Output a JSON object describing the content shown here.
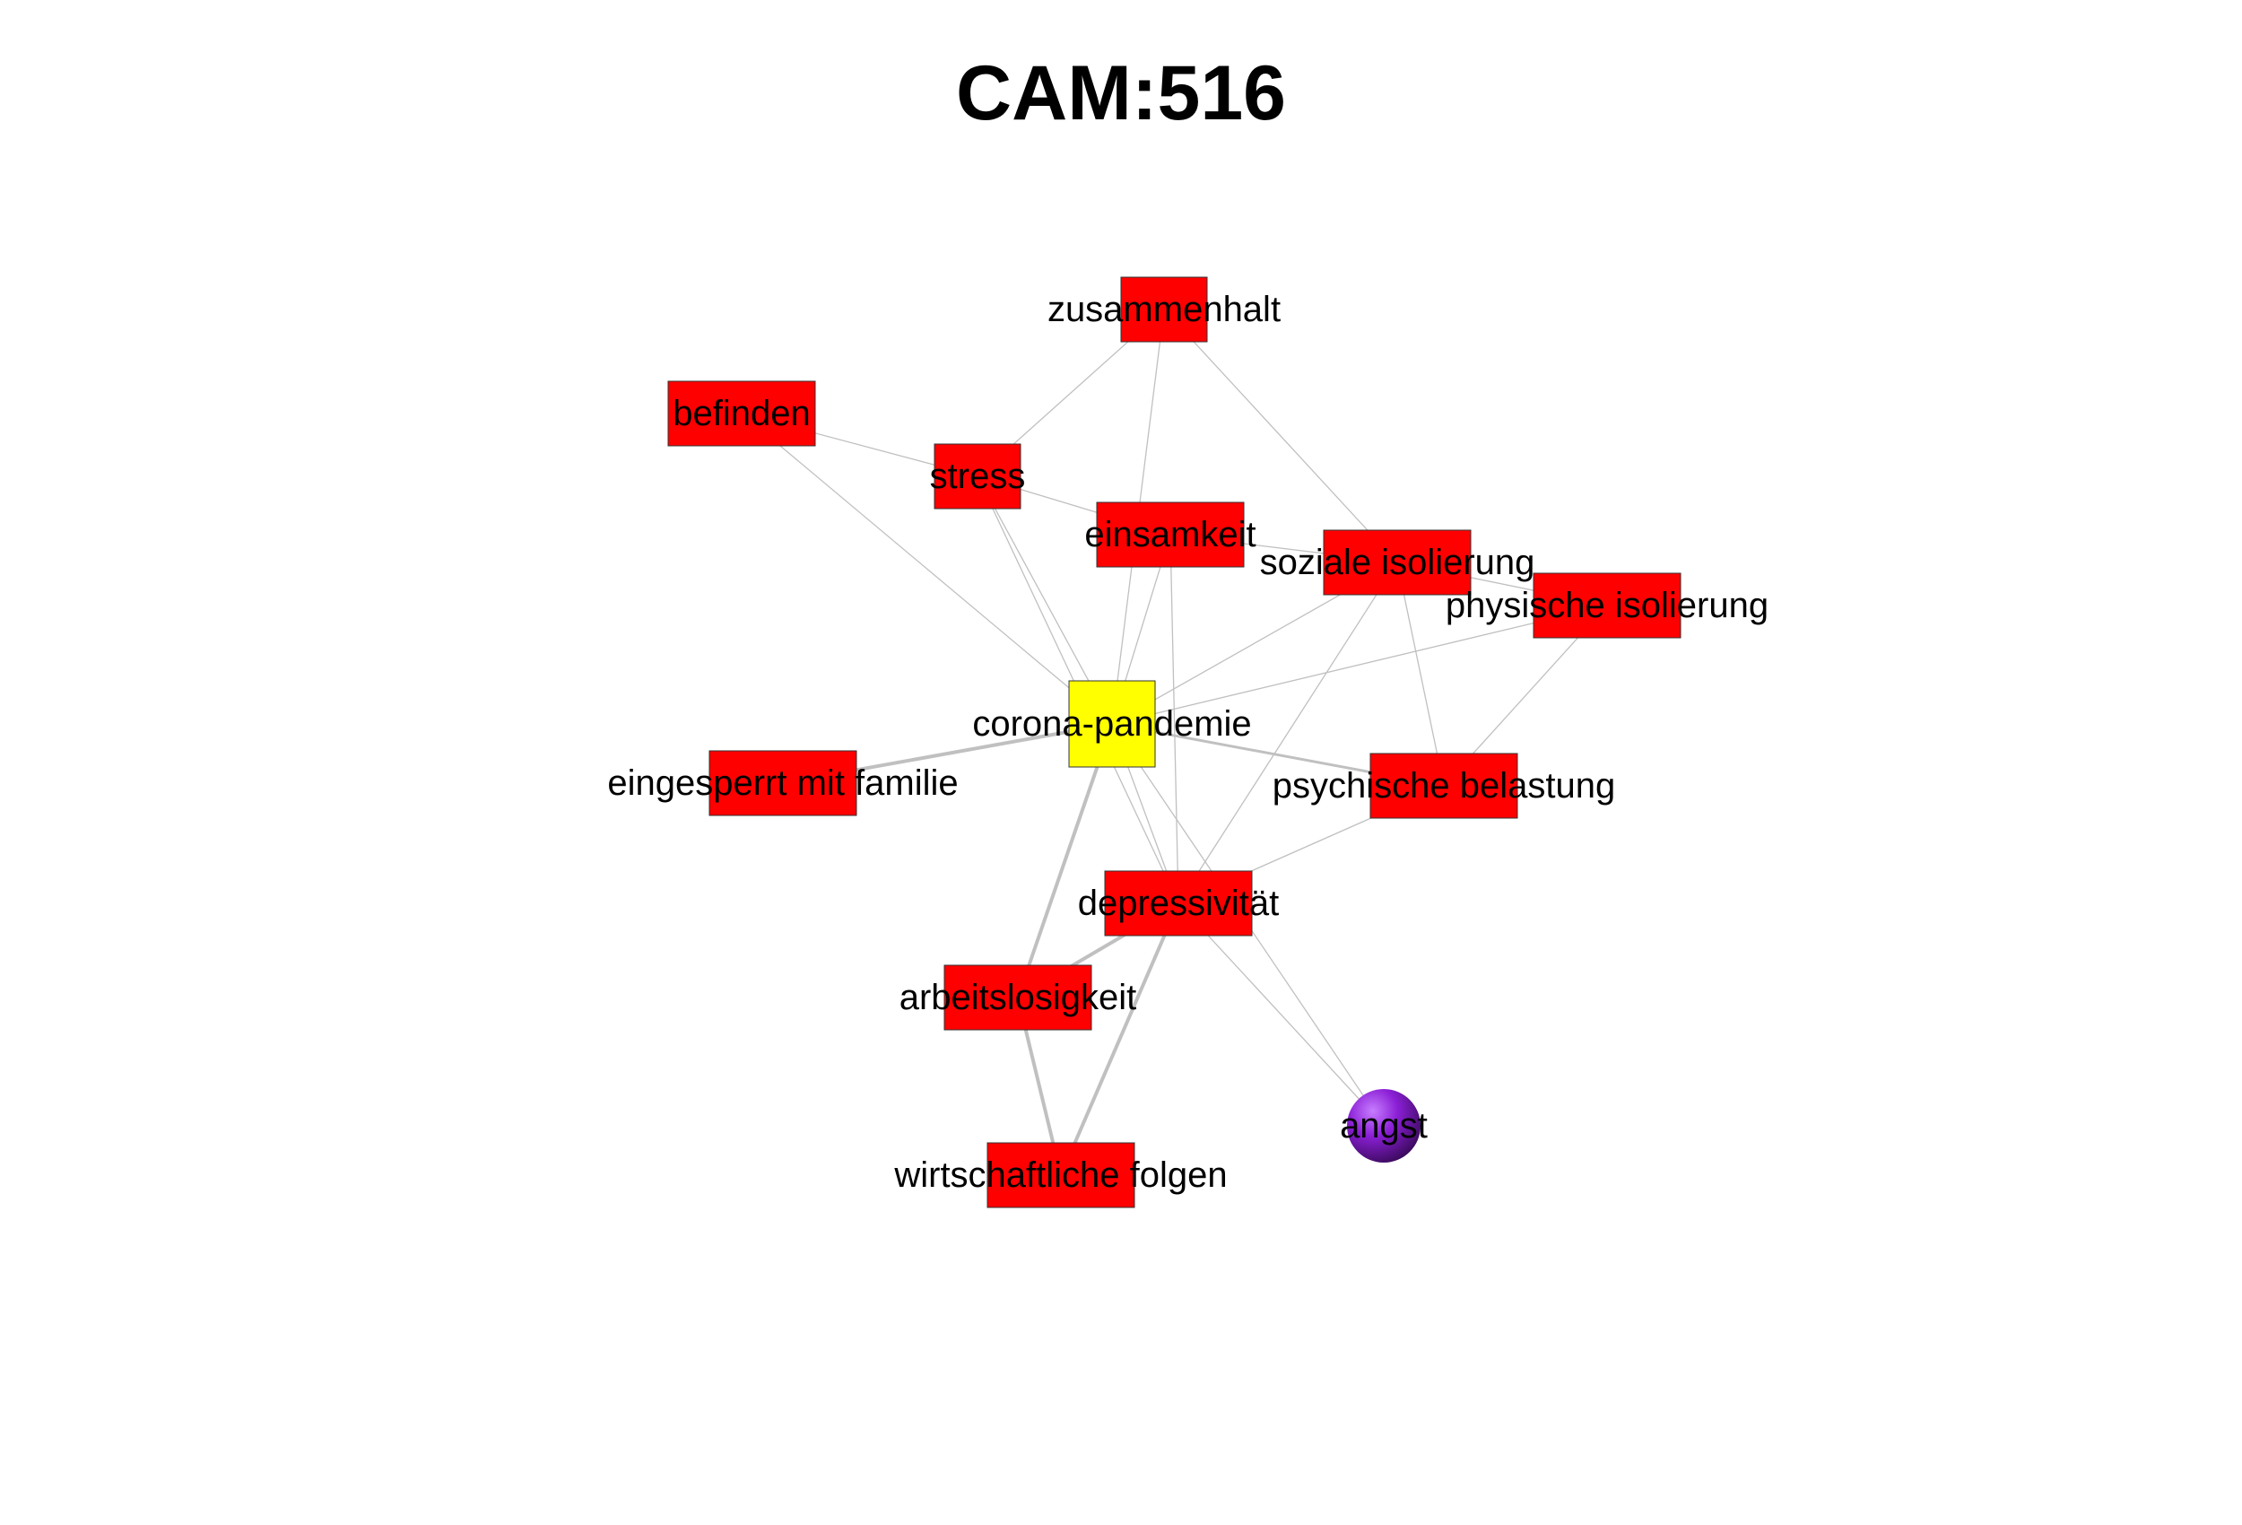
{
  "title": "CAM:516",
  "colors": {
    "positive": "#ff0000",
    "neutral": "#ffff00",
    "ambivalent": "#8b1fd6",
    "edge": "#c0c0c0",
    "border": "#333333"
  },
  "nodes": [
    {
      "id": "zusammenhalt",
      "label": "zusammenhalt",
      "type": "positive"
    },
    {
      "id": "befinden",
      "label": "befinden",
      "type": "positive"
    },
    {
      "id": "stress",
      "label": "stress",
      "type": "positive"
    },
    {
      "id": "einsamkeit",
      "label": "einsamkeit",
      "type": "positive"
    },
    {
      "id": "soziale-isolierung",
      "label": "soziale isolierung",
      "type": "positive"
    },
    {
      "id": "physische-isolierung",
      "label": "physische isolierung",
      "type": "positive"
    },
    {
      "id": "corona-pandemie",
      "label": "corona-pandemie",
      "type": "neutral"
    },
    {
      "id": "eingesperrt-mit-familie",
      "label": "eingesperrt mit familie",
      "type": "positive"
    },
    {
      "id": "psychische-belastung",
      "label": "psychische belastung",
      "type": "positive"
    },
    {
      "id": "depressivitaet",
      "label": "depressivität",
      "type": "positive"
    },
    {
      "id": "arbeitslosigkeit",
      "label": "arbeitslosigkeit",
      "type": "positive"
    },
    {
      "id": "angst",
      "label": "angst",
      "type": "ambivalent"
    },
    {
      "id": "wirtschaftliche-folgen",
      "label": "wirtschaftliche folgen",
      "type": "positive"
    }
  ],
  "edges": [
    {
      "from": "zusammenhalt",
      "to": "stress",
      "weight": 1
    },
    {
      "from": "zusammenhalt",
      "to": "corona-pandemie",
      "weight": 1
    },
    {
      "from": "zusammenhalt",
      "to": "soziale-isolierung",
      "weight": 1
    },
    {
      "from": "befinden",
      "to": "stress",
      "weight": 1
    },
    {
      "from": "befinden",
      "to": "corona-pandemie",
      "weight": 1
    },
    {
      "from": "stress",
      "to": "einsamkeit",
      "weight": 1
    },
    {
      "from": "stress",
      "to": "corona-pandemie",
      "weight": 1
    },
    {
      "from": "stress",
      "to": "depressivitaet",
      "weight": 1
    },
    {
      "from": "einsamkeit",
      "to": "corona-pandemie",
      "weight": 1
    },
    {
      "from": "einsamkeit",
      "to": "depressivitaet",
      "weight": 1
    },
    {
      "from": "einsamkeit",
      "to": "soziale-isolierung",
      "weight": 1
    },
    {
      "from": "soziale-isolierung",
      "to": "corona-pandemie",
      "weight": 1
    },
    {
      "from": "soziale-isolierung",
      "to": "physische-isolierung",
      "weight": 1
    },
    {
      "from": "soziale-isolierung",
      "to": "psychische-belastung",
      "weight": 1
    },
    {
      "from": "soziale-isolierung",
      "to": "depressivitaet",
      "weight": 1
    },
    {
      "from": "physische-isolierung",
      "to": "corona-pandemie",
      "weight": 1
    },
    {
      "from": "physische-isolierung",
      "to": "psychische-belastung",
      "weight": 1
    },
    {
      "from": "corona-pandemie",
      "to": "eingesperrt-mit-familie",
      "weight": 3
    },
    {
      "from": "corona-pandemie",
      "to": "psychische-belastung",
      "weight": 2
    },
    {
      "from": "corona-pandemie",
      "to": "arbeitslosigkeit",
      "weight": 3
    },
    {
      "from": "corona-pandemie",
      "to": "depressivitaet",
      "weight": 1
    },
    {
      "from": "psychische-belastung",
      "to": "depressivitaet",
      "weight": 1
    },
    {
      "from": "depressivitaet",
      "to": "arbeitslosigkeit",
      "weight": 3
    },
    {
      "from": "depressivitaet",
      "to": "wirtschaftliche-folgen",
      "weight": 3
    },
    {
      "from": "depressivitaet",
      "to": "angst",
      "weight": 1
    },
    {
      "from": "corona-pandemie",
      "to": "angst",
      "weight": 1
    },
    {
      "from": "arbeitslosigkeit",
      "to": "wirtschaftliche-folgen",
      "weight": 3
    }
  ]
}
